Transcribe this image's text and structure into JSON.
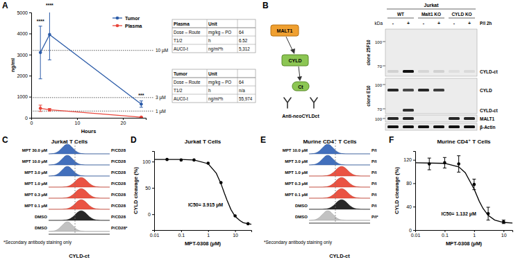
{
  "panel_labels": [
    "A",
    "B",
    "C",
    "D",
    "E",
    "F"
  ],
  "chart_data": [
    {
      "type": "line",
      "x_label": "Hours",
      "y_label": "ng/ml",
      "x": [
        2,
        4,
        24
      ],
      "xlim": [
        0,
        25
      ],
      "xticks": [
        0,
        10,
        20
      ],
      "ylim": [
        0,
        5000
      ],
      "yticks": [
        0,
        1000,
        2000,
        3000,
        4000,
        5000
      ],
      "legend": "top-right",
      "series": [
        {
          "name": "Tumor",
          "color": "#2b5ba8",
          "marker": "circle",
          "values": [
            3100,
            3950,
            650
          ],
          "errors": [
            1250,
            1200,
            150
          ]
        },
        {
          "name": "Plasma",
          "color": "#e8463c",
          "marker": "circle",
          "values": [
            450,
            380,
            30
          ],
          "errors": [
            150,
            60,
            10
          ]
        }
      ],
      "reference_lines": [
        {
          "value": 3200,
          "label": "10 µM"
        },
        {
          "value": 960,
          "label": "3 µM"
        },
        {
          "value": 320,
          "label": "1 µM"
        }
      ],
      "annotations": [
        {
          "text": "****",
          "x": 2,
          "y": 4500
        },
        {
          "text": "****",
          "x": 4,
          "y": 5250
        },
        {
          "text": "***",
          "x": 24,
          "y": 1000
        }
      ]
    },
    {
      "type": "scatter",
      "title": "Jurkat T Cells",
      "x_label": "MPT-0308 (µM)",
      "y_label": "CYLD cleavage (%)",
      "log": "x",
      "xlim": [
        0.01,
        40
      ],
      "xticks": [
        0.01,
        0.1,
        1,
        10
      ],
      "ylim": [
        -30,
        120
      ],
      "yticks": [
        0,
        50,
        100
      ],
      "series": [
        {
          "type": "line",
          "color": "#000000",
          "x": [
            0.01,
            0.1,
            0.3,
            1,
            2,
            3,
            4,
            5,
            7,
            10,
            15,
            20,
            30,
            40
          ],
          "values": [
            104,
            104,
            103,
            96,
            78,
            58,
            40,
            27,
            9,
            -4,
            -12,
            -16,
            -18,
            -19
          ]
        },
        {
          "type": "scatter",
          "marker": "circle",
          "color": "#000000",
          "x": [
            0.03,
            0.1,
            0.3,
            1,
            3,
            10,
            30
          ],
          "values": [
            104,
            103,
            103,
            97,
            60,
            -3,
            -18
          ]
        }
      ],
      "annotations": [
        {
          "text": "IC50= 3.915 µM",
          "x": 0.8,
          "y": 15
        }
      ]
    },
    {
      "type": "scatter",
      "title": "Murine CD4⁺ T Cells",
      "x_label": "MPT-0308 (µM)",
      "y_label": "CYLD cleavage (%)",
      "log": "x",
      "xlim": [
        0.01,
        20
      ],
      "xticks": [
        0.01,
        0.1,
        1,
        10
      ],
      "ylim": [
        0,
        135
      ],
      "yticks": [
        0,
        40,
        80,
        120
      ],
      "series": [
        {
          "type": "line",
          "color": "#000000",
          "x": [
            0.01,
            0.1,
            0.3,
            0.5,
            1,
            1.5,
            2,
            3,
            5,
            10,
            20
          ],
          "values": [
            115,
            114,
            108,
            98,
            70,
            49,
            37,
            25,
            17,
            13,
            12
          ]
        },
        {
          "type": "scatter",
          "marker": "circle",
          "color": "#000000",
          "x": [
            0.03,
            0.1,
            0.3,
            1,
            3,
            10
          ],
          "values": [
            113,
            115,
            113,
            78,
            28,
            14
          ],
          "errors": [
            10,
            9,
            14,
            9,
            11,
            3
          ]
        }
      ],
      "annotations": [
        {
          "text": "IC50= 1.132 µM",
          "x": 0.3,
          "y": 25
        }
      ]
    }
  ],
  "tables": [
    {
      "header": [
        "Plasma",
        "Unit"
      ],
      "rows": [
        [
          "Dose – Route",
          "mg/kg – PO",
          "64"
        ],
        [
          "T1/2",
          "h",
          "6.52"
        ],
        [
          "AUC0-t",
          "ng/ml*h",
          "5,312"
        ]
      ]
    },
    {
      "header": [
        "Tumor",
        "Unit"
      ],
      "rows": [
        [
          "Dose – Route",
          "mg/kg – PO",
          "64"
        ],
        [
          "T1/2",
          "h",
          "n/a"
        ],
        [
          "AUC0-t",
          "ng/ml*h",
          "55,974"
        ]
      ]
    }
  ],
  "blot": {
    "diagram": {
      "protease": "MALT1",
      "substrate": "CYLD",
      "fragment": "Ct",
      "antibody": "Anti-neoCYLDct"
    },
    "cell_line": "Jurkat",
    "groups": [
      "WT",
      "Malt1 KO",
      "CYLD KO"
    ],
    "treatment": "P/I 2h",
    "lanes": [
      "-",
      "+",
      "-",
      "+",
      "-",
      "+"
    ],
    "kda_title": "kDa",
    "sections": [
      {
        "clone": "clone 25F10",
        "markers": [
          "100",
          "70"
        ],
        "bands": [
          "CYLD-ct"
        ]
      },
      {
        "clone": "clone E10",
        "markers": [
          "100",
          "70"
        ],
        "bands": [
          "CYLD",
          "CYLD-ct"
        ]
      },
      {
        "markers": [
          "100"
        ],
        "bands": [
          "MALT1"
        ]
      },
      {
        "bands": [
          "β-Actin"
        ]
      }
    ]
  },
  "histograms": [
    {
      "title": "Jurkat T Cells",
      "x_label": "CYLD-ct",
      "footnote": "*Secondary antibody staining only",
      "rows": [
        {
          "label": "MPT 30.0 µM",
          "condition": "P/CD28",
          "color": "#2e5fb5"
        },
        {
          "label": "MPT 10.0 µM",
          "condition": "P/CD28",
          "color": "#2e5fb5"
        },
        {
          "label": "MPT 3.0 µM",
          "condition": "P/CD28",
          "color": "#2e5fb5"
        },
        {
          "label": "MPT 1.0 µM",
          "condition": "P/CD28",
          "color": "#e8402f"
        },
        {
          "label": "MPT 0.3 µM",
          "condition": "P/CD28",
          "color": "#e8402f"
        },
        {
          "label": "MPT 0.1 µM",
          "condition": "P/CD28",
          "color": "#e8402f"
        },
        {
          "label": "DMSO",
          "condition": "P/CD28",
          "color": "#111111"
        },
        {
          "label": "DMSO",
          "condition": "P/CD28*",
          "color": "#bbbbbb"
        }
      ]
    },
    {
      "title": "Murine CD4⁺ T Cells",
      "x_label": "CYLD-ct",
      "footnote": "*Secondary antibody staining only",
      "rows": [
        {
          "label": "MPT 10.0 µM",
          "condition": "P/I",
          "color": "#2e5fb5"
        },
        {
          "label": "MPT 3.0 µM",
          "condition": "P/I",
          "color": "#2e5fb5"
        },
        {
          "label": "MPT 1.0 µM",
          "condition": "P/I",
          "color": "#e8402f"
        },
        {
          "label": "MPT 0.3 µM",
          "condition": "P/I",
          "color": "#e8402f"
        },
        {
          "label": "MPT 0.1 µM",
          "condition": "P/I",
          "color": "#e8402f"
        },
        {
          "label": "DMSO",
          "condition": "P/I",
          "color": "#111111"
        },
        {
          "label": "DMSO",
          "condition": "P/I*",
          "color": "#bbbbbb"
        }
      ]
    }
  ]
}
